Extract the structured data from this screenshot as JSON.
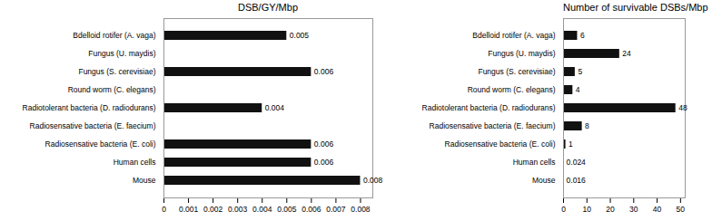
{
  "chart_data": [
    {
      "type": "bar",
      "orientation": "horizontal",
      "title": "DSB/GY/Mbp",
      "categories": [
        "Bdelloid rotifer (A. vaga)",
        "Fungus (U. maydis)",
        "Fungus (S. cerevisiae)",
        "Round worm (C. elegans)",
        "Radiotolerant bacteria (D. radiodurans)",
        "Radiosensative bacteria (E. faecium)",
        "Radiosensative bacteria (E. coli)",
        "Human cells",
        "Mouse"
      ],
      "values": [
        0.005,
        0.0,
        0.006,
        0.0,
        0.004,
        0.0,
        0.006,
        0.006,
        0.008
      ],
      "value_labels": [
        "0.005",
        null,
        "0.006",
        null,
        "0.004",
        null,
        "0.006",
        "0.006",
        "0.008"
      ],
      "data_labels": true,
      "color": "#111111",
      "xlim": [
        0,
        0.0085
      ],
      "xticks": [
        0,
        0.001,
        0.002,
        0.003,
        0.004,
        0.005,
        0.006,
        0.007,
        0.008
      ]
    },
    {
      "type": "bar",
      "orientation": "horizontal",
      "title": "Number of survivable DSBs/Mbp",
      "categories": [
        "Bdelloid rotifer (A. vaga)",
        "Fungus (U. maydis)",
        "Fungus (S. cerevisiae)",
        "Round worm (C. elegans)",
        "Radiotolerant bacteria (D. radiodurans)",
        "Radiosensative bacteria (E. faecium)",
        "Radiosensative bacteria (E. coli)",
        "Human cells",
        "Mouse"
      ],
      "values": [
        6,
        24,
        5,
        4,
        48,
        8,
        1,
        0.024,
        0.016
      ],
      "data_labels": true,
      "color": "#111111",
      "xlim": [
        0,
        52
      ],
      "xticks": [
        0,
        10,
        20,
        30,
        40,
        50
      ]
    }
  ]
}
